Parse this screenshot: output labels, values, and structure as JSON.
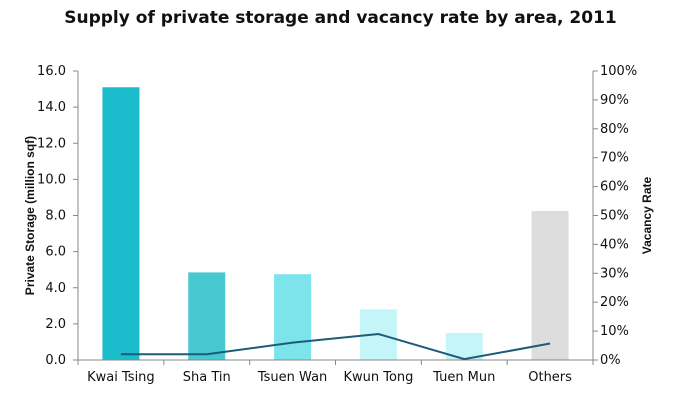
{
  "chart_data": {
    "type": "bar",
    "title": "Supply of private storage and vacancy rate by area, 2011",
    "categories": [
      "Kwai Tsing",
      "Sha Tin",
      "Tsuen Wan",
      "Kwun Tong",
      "Tuen Mun",
      "Others"
    ],
    "series": [
      {
        "type": "bar",
        "axis": "left",
        "values": [
          15.1,
          4.85,
          4.75,
          2.8,
          1.5,
          8.25
        ],
        "colors": [
          "#1bbccb",
          "#48c9d2",
          "#7de4ec",
          "#c4f5f8",
          "#c4f5f8",
          "#dddddd"
        ]
      },
      {
        "type": "line",
        "axis": "right",
        "values": [
          2,
          2,
          6,
          9,
          0.3,
          5.7
        ],
        "color": "#1d5b78"
      }
    ],
    "ylabel": "Private Storage (million sqf)",
    "ylim": [
      0,
      16
    ],
    "yticks": [
      "0.0",
      "2.0",
      "4.0",
      "6.0",
      "8.0",
      "10.0",
      "12.0",
      "14.0",
      "16.0"
    ],
    "y2label": "Vacancy Rate",
    "y2lim": [
      0,
      100
    ],
    "y2ticks": [
      "0%",
      "10%",
      "20%",
      "30%",
      "40%",
      "50%",
      "60%",
      "70%",
      "80%",
      "90%",
      "100%"
    ],
    "grid": false,
    "legend": "none"
  }
}
